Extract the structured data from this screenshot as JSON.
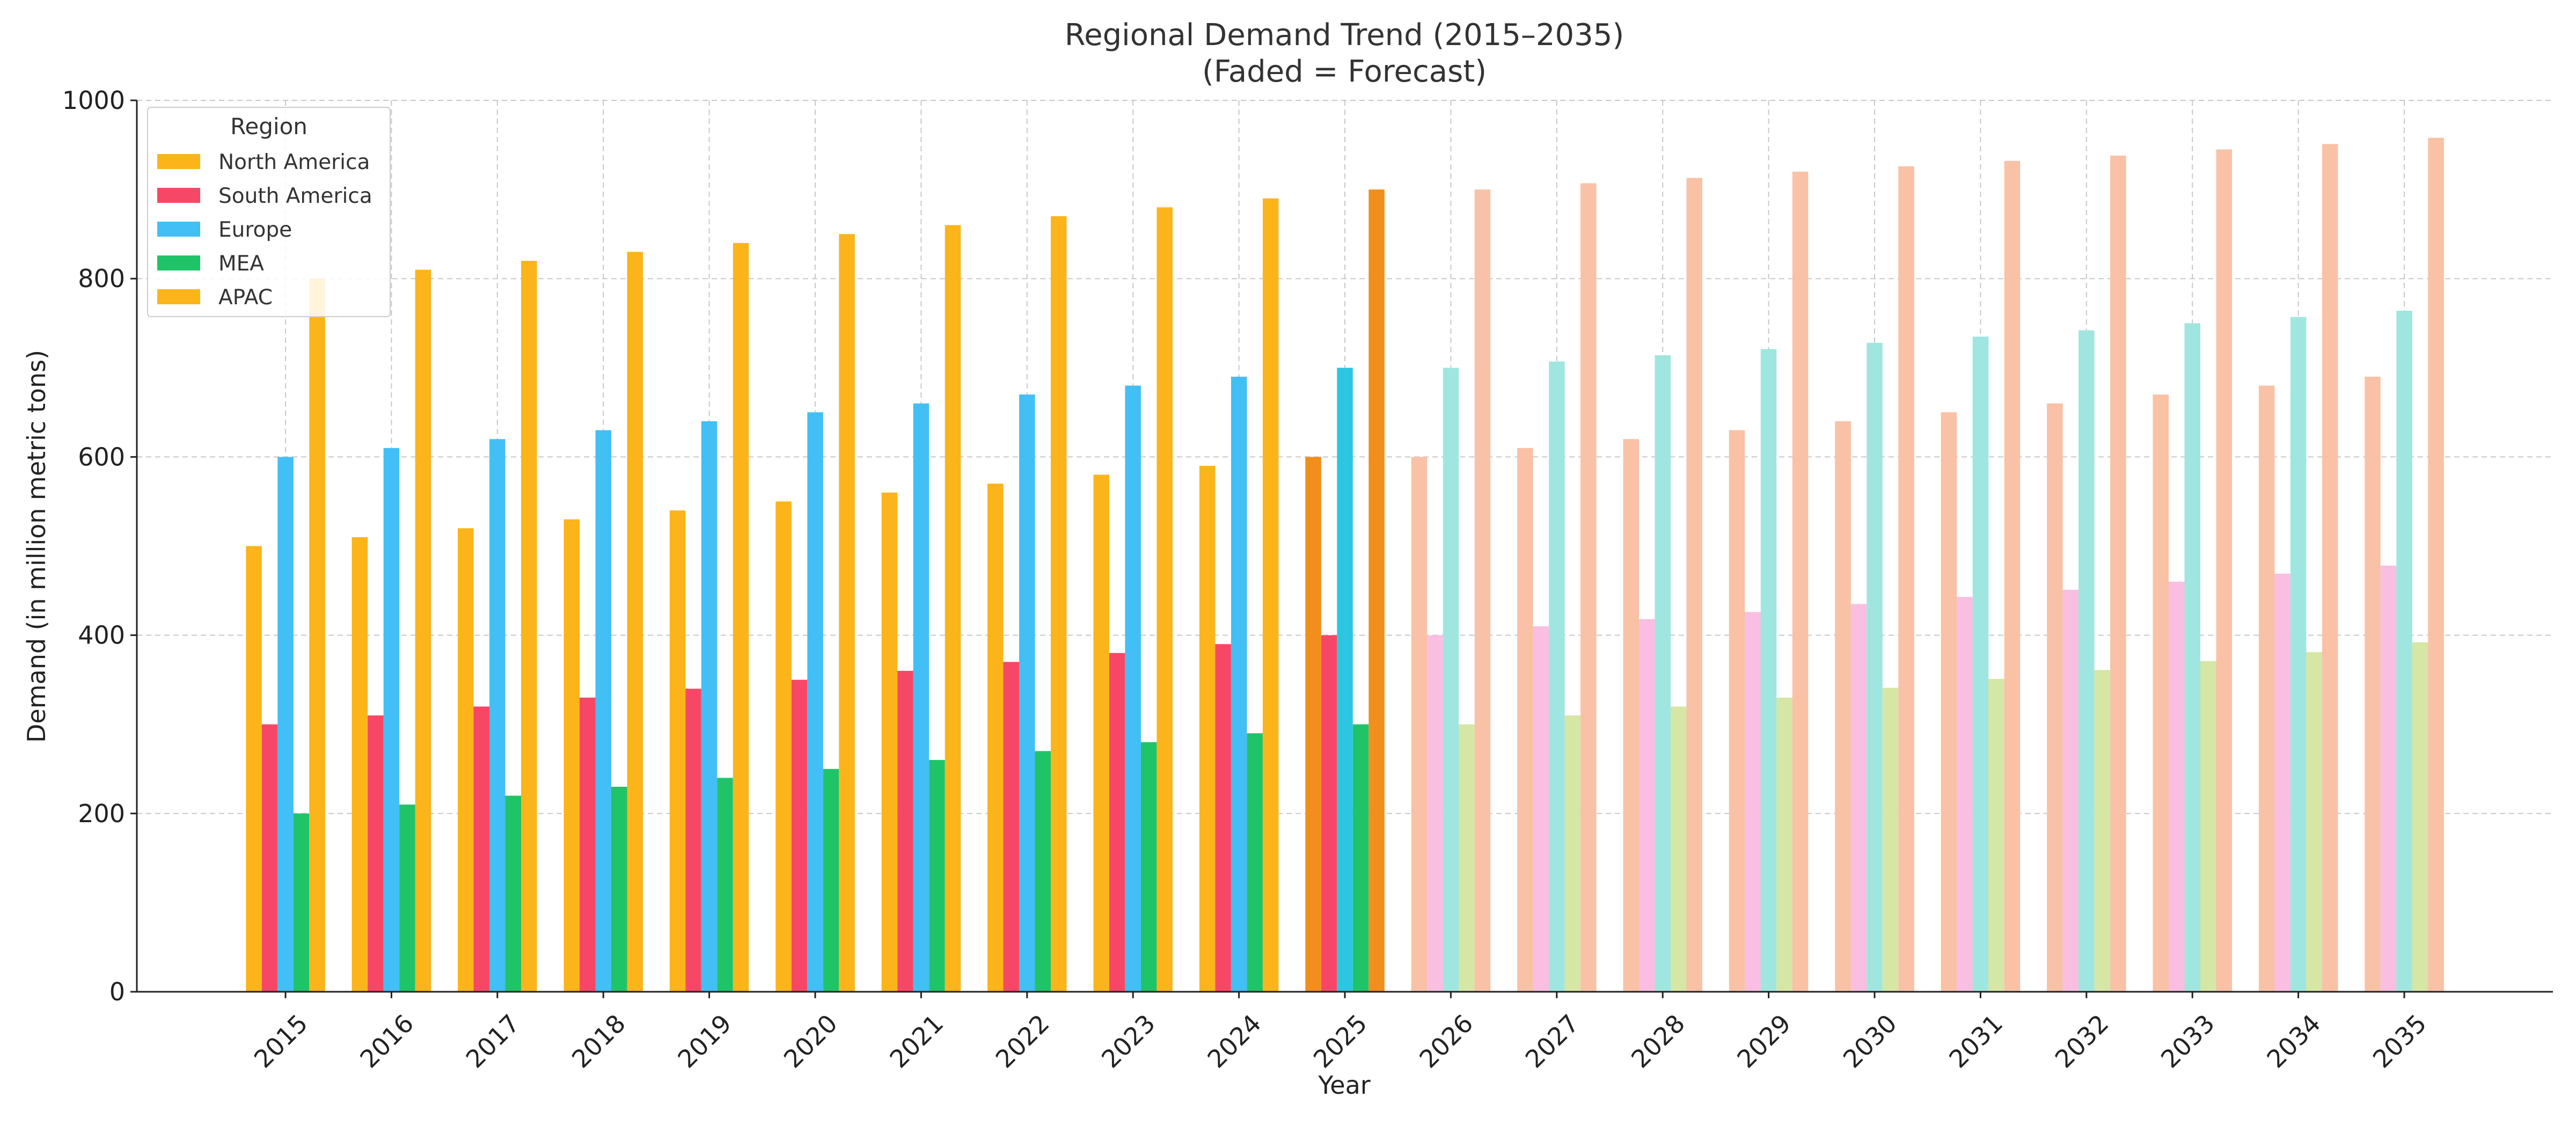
{
  "chart_data": {
    "type": "bar",
    "title": "Regional Demand Trend (2015–2035)",
    "subtitle": "(Faded = Forecast)",
    "xlabel": "Year",
    "ylabel": "Demand (in million metric tons)",
    "ylim": [
      0,
      1000
    ],
    "yticks": [
      0,
      200,
      400,
      600,
      800,
      1000
    ],
    "grid": true,
    "legend_title": "Region",
    "legend_position": "top-left",
    "categories": [
      "2015",
      "2016",
      "2017",
      "2018",
      "2019",
      "2020",
      "2021",
      "2022",
      "2023",
      "2024",
      "2025",
      "2026",
      "2027",
      "2028",
      "2029",
      "2030",
      "2031",
      "2032",
      "2033",
      "2034",
      "2035"
    ],
    "forecast_start": "2026",
    "series": [
      {
        "name": "North America",
        "color": "#FBB41A",
        "highlight_color": "#F28E1C",
        "forecast_color": "#F9C1A5",
        "values": [
          500,
          510,
          520,
          530,
          540,
          550,
          560,
          570,
          580,
          590,
          600,
          600,
          610,
          620,
          630,
          640,
          650,
          660,
          670,
          680,
          690
        ]
      },
      {
        "name": "South America",
        "color": "#F64866",
        "highlight_color": "#F64866",
        "forecast_color": "#F9BEE1",
        "values": [
          300,
          310,
          320,
          330,
          340,
          350,
          360,
          370,
          380,
          390,
          400,
          400,
          410,
          418,
          426,
          435,
          443,
          451,
          460,
          469,
          478
        ]
      },
      {
        "name": "Europe",
        "color": "#42BFF5",
        "highlight_color": "#2CC6E1",
        "forecast_color": "#9FE6E0",
        "values": [
          600,
          610,
          620,
          630,
          640,
          650,
          660,
          670,
          680,
          690,
          700,
          700,
          707,
          714,
          721,
          728,
          735,
          742,
          750,
          757,
          764
        ]
      },
      {
        "name": "MEA",
        "color": "#1FC469",
        "highlight_color": "#1FC469",
        "forecast_color": "#D6E6A4",
        "values": [
          200,
          210,
          220,
          230,
          240,
          250,
          260,
          270,
          280,
          290,
          300,
          300,
          310,
          320,
          330,
          341,
          351,
          361,
          371,
          381,
          392
        ]
      },
      {
        "name": "APAC",
        "color": "#FBB41A",
        "highlight_color": "#F28E1C",
        "forecast_color": "#F9C1A5",
        "values": [
          800,
          810,
          820,
          830,
          840,
          850,
          860,
          870,
          880,
          890,
          900,
          900,
          907,
          913,
          920,
          926,
          932,
          938,
          945,
          951,
          958
        ]
      }
    ]
  }
}
